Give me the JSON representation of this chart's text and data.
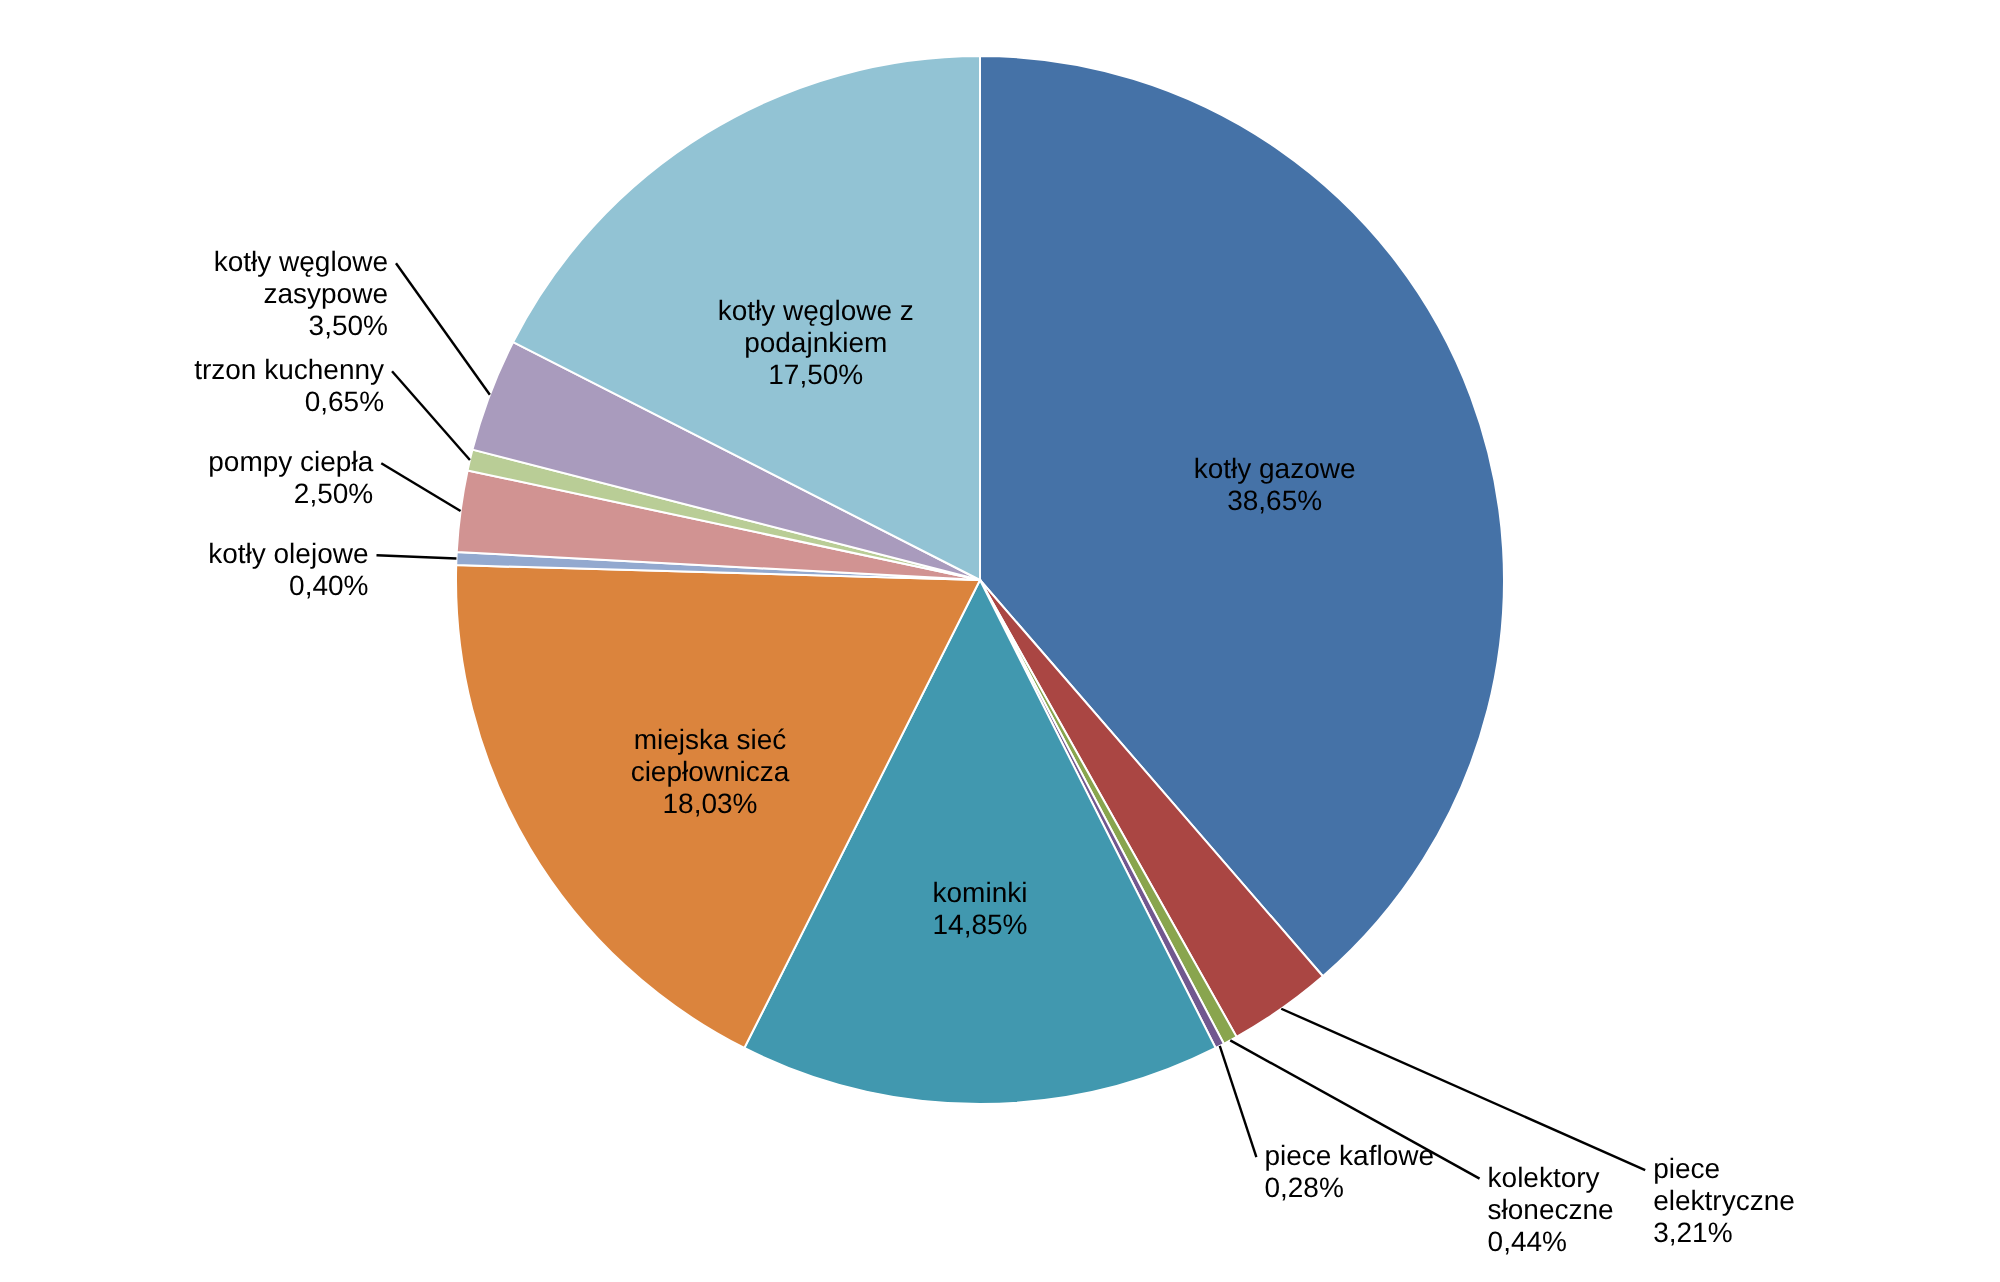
{
  "chart_data": {
    "type": "pie",
    "categories": [
      "kotły gazowe",
      "piece elektryczne",
      "kolektory słoneczne",
      "piece kaflowe",
      "kominki",
      "miejska sieć ciepłownicza",
      "kotły olejowe",
      "pompy ciepła",
      "trzon kuchenny",
      "kotły węglowe zasypowe",
      "kotły węglowe z podajnkiem"
    ],
    "values": [
      38.65,
      3.21,
      0.44,
      0.28,
      14.85,
      18.03,
      0.4,
      2.5,
      0.65,
      3.5,
      17.5
    ],
    "colors": [
      "#4572a7",
      "#aa4643",
      "#89a54e",
      "#71588f",
      "#4198af",
      "#db843d",
      "#93a9cf",
      "#d19392",
      "#b9cd96",
      "#a99bbd",
      "#92c3d4"
    ],
    "value_labels": [
      "38,65%",
      "3,21%",
      "0,44%",
      "0,28%",
      "14,85%",
      "18,03%",
      "0,40%",
      "2,50%",
      "0,65%",
      "3,50%",
      "17,50%"
    ]
  }
}
